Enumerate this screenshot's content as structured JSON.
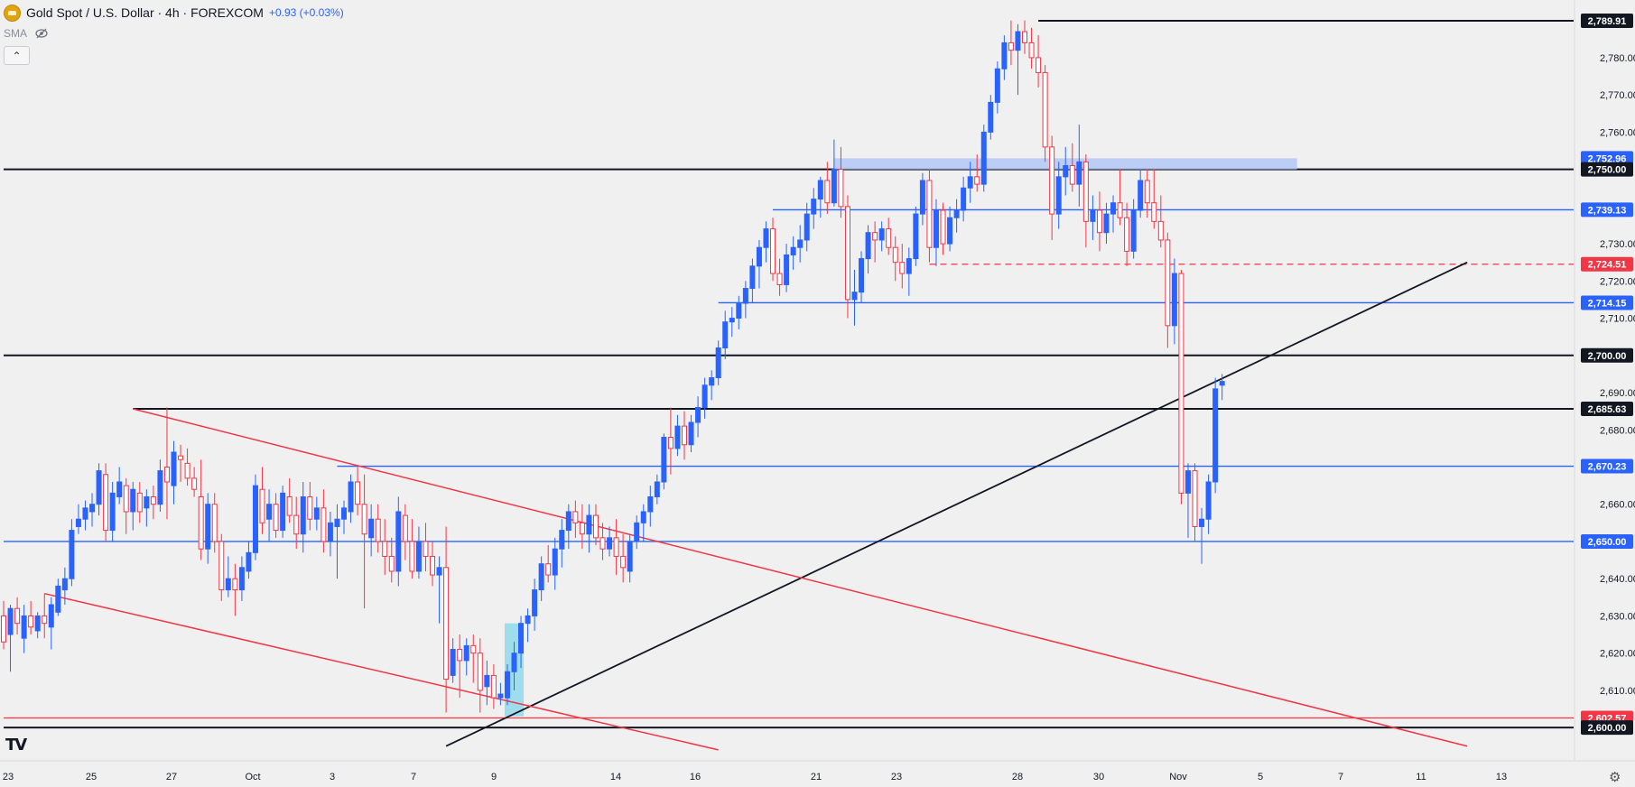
{
  "header": {
    "title": "Gold Spot / U.S. Dollar · 4h · FOREXCOM",
    "change": "+0.93 (+0.03%)",
    "indicator": "SMA",
    "collapse_glyph": "⌃",
    "icons": [
      "gold-coin-icon",
      "eye-hidden-icon",
      "chevron-up-icon",
      "tradingview-logo-icon",
      "settings-gear-icon"
    ],
    "logo_text": "TV",
    "settings_glyph": "⚙"
  },
  "chart_data": {
    "type": "candlestick",
    "symbol": "Gold Spot / U.S. Dollar",
    "interval": "4h",
    "ylim": [
      2592,
      2796
    ],
    "y_ticks": [
      "2,610.00",
      "2,620.00",
      "2,630.00",
      "2,640.00",
      "2,660.00",
      "2,680.00",
      "2,690.00",
      "2,710.00",
      "2,720.00",
      "2,730.00",
      "2,760.00",
      "2,770.00",
      "2,780.00"
    ],
    "x_ticks": [
      "23",
      "25",
      "27",
      "Oct",
      "3",
      "7",
      "9",
      "14",
      "16",
      "21",
      "23",
      "28",
      "30",
      "Nov",
      "5",
      "7",
      "11",
      "13"
    ],
    "price_labels": [
      {
        "text": "2,789.91",
        "value": 2789.91,
        "bg": "#131722",
        "fg": "#ffffff"
      },
      {
        "text": "2,752.96",
        "value": 2752.96,
        "bg": "#2962ff",
        "fg": "#ffffff"
      },
      {
        "text": "2,750.00",
        "value": 2750.0,
        "bg": "#131722",
        "fg": "#ffffff"
      },
      {
        "text": "2,739.13",
        "value": 2739.13,
        "bg": "#2962ff",
        "fg": "#ffffff"
      },
      {
        "text": "2,724.51",
        "value": 2724.51,
        "bg": "#f23645",
        "fg": "#ffffff"
      },
      {
        "text": "2,714.15",
        "value": 2714.15,
        "bg": "#2962ff",
        "fg": "#ffffff"
      },
      {
        "text": "2,700.00",
        "value": 2700.0,
        "bg": "#131722",
        "fg": "#ffffff"
      },
      {
        "text": "2,685.63",
        "value": 2685.63,
        "bg": "#131722",
        "fg": "#ffffff"
      },
      {
        "text": "2,670.23",
        "value": 2670.23,
        "bg": "#2962ff",
        "fg": "#ffffff"
      },
      {
        "text": "2,650.00",
        "value": 2650.0,
        "bg": "#2962ff",
        "fg": "#ffffff"
      },
      {
        "text": "2,602.57",
        "value": 2602.57,
        "bg": "#f23645",
        "fg": "#ffffff"
      },
      {
        "text": "2,600.00",
        "value": 2600.0,
        "bg": "#131722",
        "fg": "#ffffff"
      }
    ],
    "colors": {
      "up": "#2962ff",
      "down": "#f23645",
      "support": "#2962ff",
      "resistance_black": "#131722",
      "trend_red": "#f23645",
      "zone_fill": "#b3c8f7",
      "highlight": "#8fd9ea"
    },
    "candles_ohlc": [
      [
        2630,
        2634,
        2621,
        2623
      ],
      [
        2625,
        2633,
        2615,
        2632
      ],
      [
        2632,
        2635,
        2625,
        2628
      ],
      [
        2624,
        2633,
        2620,
        2630
      ],
      [
        2630,
        2634,
        2625,
        2627
      ],
      [
        2626,
        2631,
        2624,
        2630
      ],
      [
        2630,
        2636,
        2624,
        2628
      ],
      [
        2627,
        2635,
        2621,
        2633
      ],
      [
        2631,
        2640,
        2630,
        2638
      ],
      [
        2637,
        2643,
        2633,
        2640
      ],
      [
        2640,
        2656,
        2638,
        2653
      ],
      [
        2654,
        2660,
        2652,
        2656
      ],
      [
        2656,
        2661,
        2653,
        2659
      ],
      [
        2658,
        2663,
        2654,
        2660
      ],
      [
        2660,
        2671,
        2657,
        2669
      ],
      [
        2668,
        2671,
        2650,
        2653
      ],
      [
        2653,
        2666,
        2650,
        2663
      ],
      [
        2662,
        2670,
        2660,
        2666
      ],
      [
        2665,
        2667,
        2652,
        2658
      ],
      [
        2658,
        2666,
        2653,
        2664
      ],
      [
        2663,
        2666,
        2655,
        2658
      ],
      [
        2659,
        2664,
        2654,
        2662
      ],
      [
        2662,
        2665,
        2656,
        2660
      ],
      [
        2660,
        2672,
        2658,
        2669
      ],
      [
        2670,
        2686,
        2656,
        2666
      ],
      [
        2665,
        2677,
        2660,
        2674
      ],
      [
        2673,
        2676,
        2666,
        2672
      ],
      [
        2671,
        2675,
        2665,
        2667
      ],
      [
        2667,
        2670,
        2662,
        2664
      ],
      [
        2662,
        2672,
        2645,
        2648
      ],
      [
        2648,
        2663,
        2644,
        2660
      ],
      [
        2660,
        2663,
        2647,
        2650
      ],
      [
        2650,
        2652,
        2634,
        2637
      ],
      [
        2637,
        2646,
        2635,
        2640
      ],
      [
        2640,
        2644,
        2630,
        2637
      ],
      [
        2637,
        2646,
        2634,
        2643
      ],
      [
        2642,
        2650,
        2640,
        2647
      ],
      [
        2647,
        2668,
        2645,
        2665
      ],
      [
        2664,
        2670,
        2652,
        2655
      ],
      [
        2656,
        2664,
        2650,
        2660
      ],
      [
        2660,
        2663,
        2651,
        2653
      ],
      [
        2653,
        2665,
        2651,
        2663
      ],
      [
        2662,
        2667,
        2655,
        2657
      ],
      [
        2657,
        2662,
        2648,
        2652
      ],
      [
        2652,
        2666,
        2647,
        2662
      ],
      [
        2662,
        2666,
        2653,
        2656
      ],
      [
        2656,
        2662,
        2653,
        2659
      ],
      [
        2659,
        2664,
        2647,
        2650
      ],
      [
        2650,
        2658,
        2646,
        2655
      ],
      [
        2654,
        2660,
        2640,
        2656
      ],
      [
        2656,
        2661,
        2652,
        2659
      ],
      [
        2658,
        2668,
        2655,
        2666
      ],
      [
        2666,
        2670,
        2657,
        2660
      ],
      [
        2660,
        2668,
        2632,
        2652
      ],
      [
        2651,
        2660,
        2646,
        2656
      ],
      [
        2656,
        2660,
        2647,
        2650
      ],
      [
        2650,
        2656,
        2641,
        2646
      ],
      [
        2646,
        2651,
        2639,
        2642
      ],
      [
        2642,
        2662,
        2638,
        2658
      ],
      [
        2657,
        2660,
        2645,
        2650
      ],
      [
        2650,
        2656,
        2640,
        2642
      ],
      [
        2642,
        2654,
        2640,
        2650
      ],
      [
        2650,
        2655,
        2642,
        2646
      ],
      [
        2646,
        2650,
        2638,
        2641
      ],
      [
        2641,
        2646,
        2628,
        2643
      ],
      [
        2643,
        2654,
        2604,
        2613
      ],
      [
        2614,
        2624,
        2612,
        2621
      ],
      [
        2621,
        2625,
        2608,
        2618
      ],
      [
        2618,
        2624,
        2614,
        2622
      ],
      [
        2622,
        2625,
        2612,
        2620
      ],
      [
        2620,
        2624,
        2604,
        2610
      ],
      [
        2611,
        2618,
        2606,
        2614
      ],
      [
        2614,
        2617,
        2605,
        2608
      ],
      [
        2608,
        2612,
        2606,
        2609
      ],
      [
        2608,
        2617,
        2606,
        2615
      ],
      [
        2615,
        2623,
        2610,
        2620
      ],
      [
        2620,
        2630,
        2616,
        2628
      ],
      [
        2628,
        2632,
        2623,
        2630
      ],
      [
        2630,
        2640,
        2626,
        2637
      ],
      [
        2637,
        2646,
        2634,
        2644
      ],
      [
        2644,
        2649,
        2639,
        2641
      ],
      [
        2641,
        2651,
        2637,
        2648
      ],
      [
        2648,
        2656,
        2643,
        2653
      ],
      [
        2653,
        2660,
        2648,
        2658
      ],
      [
        2658,
        2661,
        2651,
        2655
      ],
      [
        2655,
        2660,
        2648,
        2652
      ],
      [
        2652,
        2660,
        2647,
        2657
      ],
      [
        2657,
        2660,
        2649,
        2651
      ],
      [
        2651,
        2655,
        2645,
        2648
      ],
      [
        2648,
        2654,
        2646,
        2651
      ],
      [
        2651,
        2656,
        2641,
        2646
      ],
      [
        2646,
        2652,
        2639,
        2643
      ],
      [
        2642,
        2652,
        2639,
        2650
      ],
      [
        2650,
        2657,
        2648,
        2655
      ],
      [
        2655,
        2660,
        2650,
        2658
      ],
      [
        2658,
        2665,
        2654,
        2662
      ],
      [
        2662,
        2668,
        2660,
        2666
      ],
      [
        2666,
        2679,
        2664,
        2678
      ],
      [
        2678,
        2686,
        2668,
        2675
      ],
      [
        2675,
        2684,
        2673,
        2681
      ],
      [
        2681,
        2685,
        2672,
        2676
      ],
      [
        2676,
        2684,
        2674,
        2682
      ],
      [
        2682,
        2689,
        2678,
        2686
      ],
      [
        2686,
        2694,
        2683,
        2692
      ],
      [
        2692,
        2696,
        2688,
        2694
      ],
      [
        2694,
        2704,
        2692,
        2702
      ],
      [
        2702,
        2712,
        2699,
        2709
      ],
      [
        2709,
        2713,
        2705,
        2710
      ],
      [
        2710,
        2716,
        2707,
        2714
      ],
      [
        2714,
        2720,
        2710,
        2718
      ],
      [
        2718,
        2726,
        2714,
        2724
      ],
      [
        2724,
        2731,
        2718,
        2729
      ],
      [
        2729,
        2736,
        2725,
        2734
      ],
      [
        2734,
        2737,
        2720,
        2722
      ],
      [
        2722,
        2726,
        2716,
        2719
      ],
      [
        2719,
        2730,
        2717,
        2727
      ],
      [
        2727,
        2732,
        2723,
        2729
      ],
      [
        2729,
        2735,
        2725,
        2731
      ],
      [
        2731,
        2741,
        2728,
        2738
      ],
      [
        2738,
        2745,
        2734,
        2742
      ],
      [
        2742,
        2748,
        2737,
        2747
      ],
      [
        2747,
        2752,
        2738,
        2741
      ],
      [
        2741,
        2758,
        2740,
        2750
      ],
      [
        2750,
        2756,
        2737,
        2740
      ],
      [
        2740,
        2743,
        2710,
        2715
      ],
      [
        2715,
        2723,
        2708,
        2717
      ],
      [
        2717,
        2728,
        2714,
        2726
      ],
      [
        2726,
        2735,
        2722,
        2733
      ],
      [
        2733,
        2736,
        2725,
        2731
      ],
      [
        2731,
        2736,
        2728,
        2734
      ],
      [
        2734,
        2737,
        2727,
        2729
      ],
      [
        2729,
        2732,
        2720,
        2725
      ],
      [
        2725,
        2730,
        2718,
        2722
      ],
      [
        2722,
        2729,
        2716,
        2726
      ],
      [
        2726,
        2740,
        2724,
        2738
      ],
      [
        2738,
        2749,
        2735,
        2747
      ],
      [
        2747,
        2750,
        2725,
        2729
      ],
      [
        2729,
        2742,
        2724,
        2739
      ],
      [
        2739,
        2741,
        2727,
        2730
      ],
      [
        2730,
        2740,
        2728,
        2737
      ],
      [
        2737,
        2742,
        2733,
        2739
      ],
      [
        2739,
        2748,
        2736,
        2745
      ],
      [
        2745,
        2752,
        2741,
        2748
      ],
      [
        2748,
        2754,
        2744,
        2746
      ],
      [
        2746,
        2762,
        2744,
        2760
      ],
      [
        2760,
        2770,
        2758,
        2768
      ],
      [
        2768,
        2779,
        2765,
        2777
      ],
      [
        2777,
        2786,
        2774,
        2784
      ],
      [
        2784,
        2790,
        2778,
        2782
      ],
      [
        2782,
        2789,
        2770,
        2787
      ],
      [
        2787,
        2790,
        2781,
        2784
      ],
      [
        2784,
        2788,
        2777,
        2780
      ],
      [
        2780,
        2786,
        2772,
        2776
      ],
      [
        2776,
        2778,
        2752,
        2756
      ],
      [
        2756,
        2759,
        2731,
        2738
      ],
      [
        2738,
        2752,
        2734,
        2748
      ],
      [
        2748,
        2756,
        2743,
        2751
      ],
      [
        2751,
        2757,
        2744,
        2746
      ],
      [
        2746,
        2762,
        2740,
        2752
      ],
      [
        2752,
        2754,
        2729,
        2736
      ],
      [
        2736,
        2743,
        2731,
        2739
      ],
      [
        2739,
        2744,
        2728,
        2733
      ],
      [
        2733,
        2741,
        2730,
        2738
      ],
      [
        2738,
        2743,
        2733,
        2741
      ],
      [
        2741,
        2750,
        2735,
        2737
      ],
      [
        2737,
        2741,
        2724,
        2728
      ],
      [
        2728,
        2742,
        2726,
        2739
      ],
      [
        2739,
        2750,
        2737,
        2747
      ],
      [
        2747,
        2750,
        2737,
        2741
      ],
      [
        2741,
        2750,
        2734,
        2736
      ],
      [
        2736,
        2743,
        2729,
        2731
      ],
      [
        2731,
        2733,
        2702,
        2708
      ],
      [
        2708,
        2726,
        2703,
        2722
      ],
      [
        2722,
        2723,
        2660,
        2663
      ],
      [
        2663,
        2671,
        2651,
        2669
      ],
      [
        2669,
        2671,
        2650,
        2654
      ],
      [
        2654,
        2659,
        2644,
        2656
      ],
      [
        2656,
        2668,
        2652,
        2666
      ],
      [
        2666,
        2694,
        2663,
        2691
      ],
      [
        2692,
        2695,
        2688,
        2693
      ]
    ],
    "lines": [
      {
        "kind": "horizontal",
        "value": 2789.91,
        "color": "#131722",
        "from_bar": 152
      },
      {
        "kind": "horizontal",
        "value": 2750.0,
        "color": "#131722",
        "from_bar": 0
      },
      {
        "kind": "horizontal",
        "value": 2700.0,
        "color": "#131722",
        "from_bar": 0
      },
      {
        "kind": "horizontal",
        "value": 2685.63,
        "color": "#131722",
        "from_bar": 19
      },
      {
        "kind": "horizontal",
        "value": 2600.0,
        "color": "#131722",
        "from_bar": 0
      },
      {
        "kind": "horizontal",
        "value": 2739.13,
        "color": "#2962ff",
        "from_bar": 113
      },
      {
        "kind": "horizontal",
        "value": 2714.15,
        "color": "#2962ff",
        "from_bar": 105
      },
      {
        "kind": "horizontal",
        "value": 2670.23,
        "color": "#2962ff",
        "from_bar": 49
      },
      {
        "kind": "horizontal",
        "value": 2650.0,
        "color": "#2962ff",
        "from_bar": 0
      },
      {
        "kind": "horizontal",
        "value": 2602.57,
        "color": "#f23645",
        "from_bar": 0
      },
      {
        "kind": "horizontal_dashed",
        "value": 2724.51,
        "color": "#f23645",
        "from_bar": 136
      },
      {
        "kind": "zone",
        "low": 2750.0,
        "high": 2752.96,
        "from_bar": 122,
        "to_bar": 190
      }
    ],
    "trendlines": [
      {
        "color": "#131722",
        "p1": {
          "bar": 65,
          "value": 2595
        },
        "p2": {
          "bar": 215,
          "value": 2725
        }
      },
      {
        "color": "#f23645",
        "p1": {
          "bar": 19,
          "value": 2685.63
        },
        "p2": {
          "bar": 215,
          "value": 2595
        }
      },
      {
        "color": "#f23645",
        "p1": {
          "bar": 6,
          "value": 2636
        },
        "p2": {
          "bar": 105,
          "value": 2594
        }
      }
    ],
    "highlight_bars": {
      "from_bar": 74,
      "to_bar": 76
    }
  }
}
